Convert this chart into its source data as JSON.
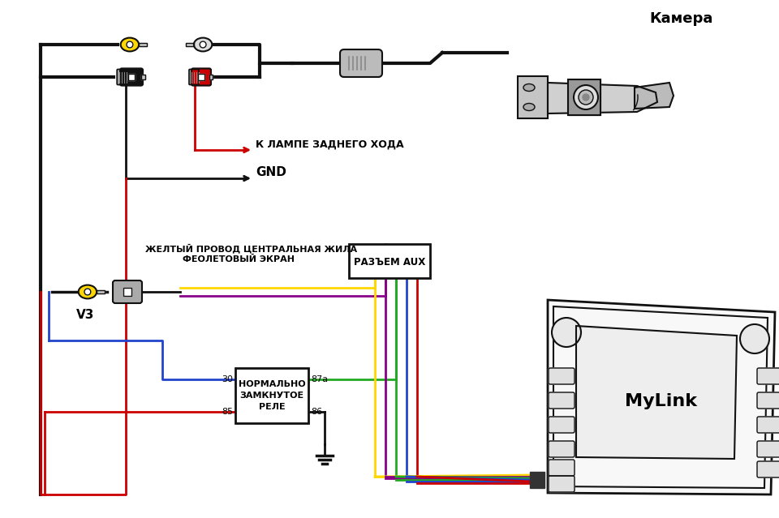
{
  "bg_color": "#ffffff",
  "text_camera": "Камера",
  "text_gnd": "GND",
  "text_lamp": "К ЛАМПЕ ЗАДНЕГО ХОДА",
  "text_v3": "V3",
  "text_aux": "РАЗЪЕМ AUX",
  "text_relay1": "НОРМАЛЬНО",
  "text_relay2": "ЗАМКНУТОЕ",
  "text_relay3": "РЕЛЕ",
  "text_yellow_wire": "ЖЕЛТЫЙ ПРОВОД ЦЕНТРАЛЬНАЯ ЖИЛА",
  "text_violet_screen": "ФЕОЛЕТОВЫЙ ЭКРАН",
  "text_mylink": "MyLink",
  "label_30": "30",
  "label_85": "85",
  "label_86": "86",
  "label_87a": "87а",
  "color_yellow": "#FFD700",
  "color_red": "#CC0000",
  "color_black": "#111111",
  "color_gray": "#AAAAAA",
  "color_dark_gray": "#555555",
  "color_blue": "#2244CC",
  "color_green": "#22AA22",
  "color_violet": "#880088",
  "color_pink": "#FF88BB",
  "color_white": "#FFFFFF",
  "color_light_gray": "#CCCCCC",
  "color_med_gray": "#999999"
}
